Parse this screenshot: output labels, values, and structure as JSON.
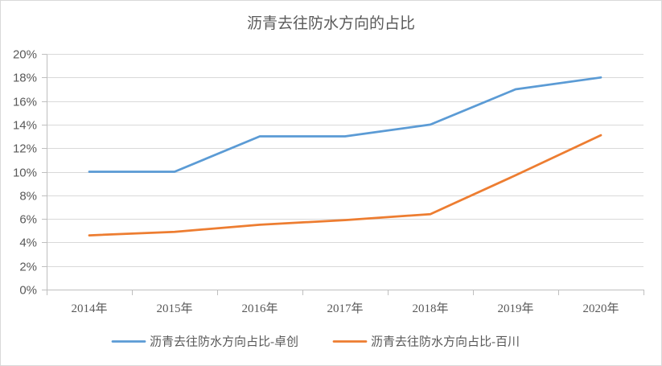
{
  "chart_data": {
    "type": "line",
    "title": "沥青去往防水方向的占比",
    "categories": [
      "2014年",
      "2015年",
      "2016年",
      "2017年",
      "2018年",
      "2019年",
      "2020年"
    ],
    "series": [
      {
        "name": "沥青去往防水方向占比-卓创",
        "color": "#5b9bd5",
        "values": [
          10,
          10,
          13,
          13,
          14,
          17,
          18
        ]
      },
      {
        "name": "沥青去往防水方向占比-百川",
        "color": "#ed7d31",
        "values": [
          4.6,
          4.9,
          5.5,
          5.9,
          6.4,
          9.7,
          13.1
        ]
      }
    ],
    "ylim": [
      0,
      20
    ],
    "yticks": [
      0,
      2,
      4,
      6,
      8,
      10,
      12,
      14,
      16,
      18,
      20
    ],
    "ytick_labels": [
      "0%",
      "2%",
      "4%",
      "6%",
      "8%",
      "10%",
      "12%",
      "14%",
      "16%",
      "18%",
      "20%"
    ],
    "grid": true,
    "legend": "bottom"
  }
}
